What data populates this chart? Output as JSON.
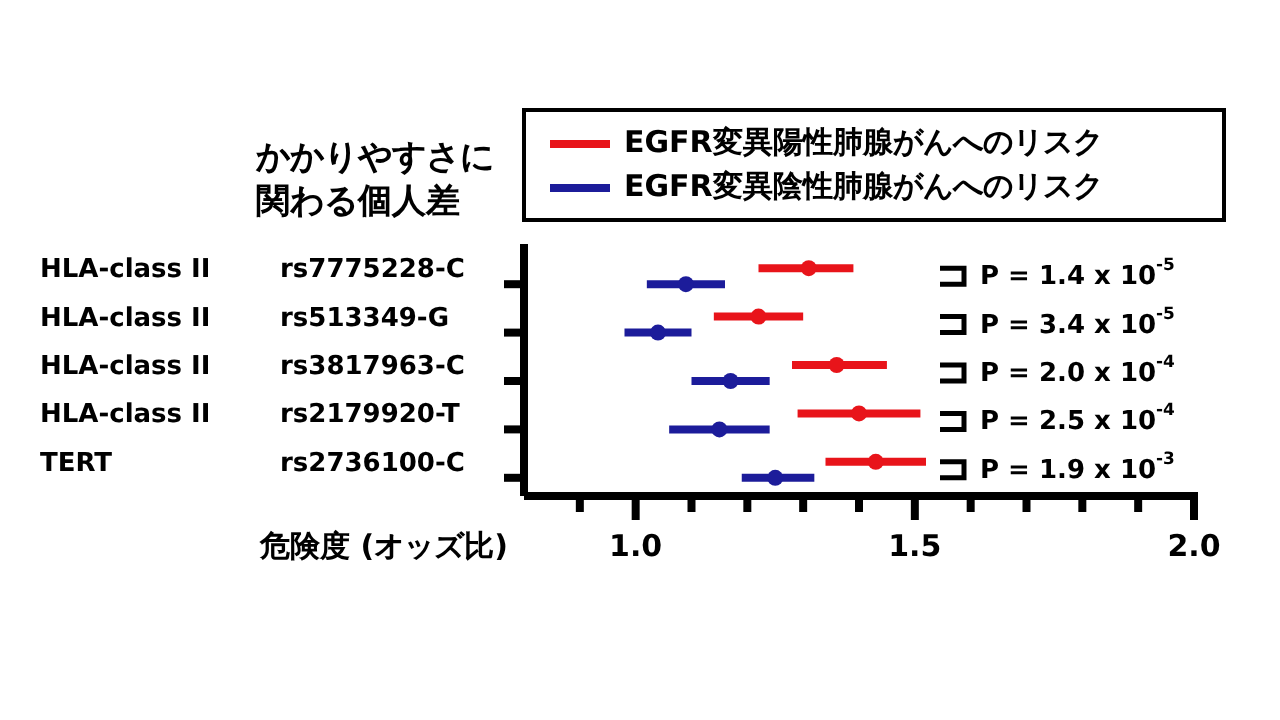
{
  "chart_data": {
    "type": "scatter",
    "orientation": "horizontal",
    "ylabel": "かかりやすさに関わる個人差",
    "xlabel": "危険度 (オッズ比)",
    "categories": [
      "rs7775228-C",
      "rs513349-G",
      "rs3817963-C",
      "rs2179920-T",
      "rs2736100-C"
    ],
    "y2_categories": [
      "HLA-class II",
      "HLA-class II",
      "HLA-class II",
      "HLA-class II",
      "TERT"
    ],
    "series": [
      {
        "name": "EGFR変異陽性肺腺がんへのリスク",
        "color": "#e8141a",
        "values": [
          1.31,
          1.22,
          1.36,
          1.4,
          1.43
        ],
        "errors": [
          [
            1.22,
            1.39
          ],
          [
            1.14,
            1.3
          ],
          [
            1.28,
            1.45
          ],
          [
            1.29,
            1.51
          ],
          [
            1.34,
            1.52
          ]
        ]
      },
      {
        "name": "EGFR変異陰性肺腺がんへのリスク",
        "color": "#1c1c9a",
        "values": [
          1.09,
          1.04,
          1.17,
          1.15,
          1.25
        ],
        "errors": [
          [
            1.02,
            1.16
          ],
          [
            0.98,
            1.1
          ],
          [
            1.1,
            1.24
          ],
          [
            1.06,
            1.24
          ],
          [
            1.19,
            1.32
          ]
        ]
      }
    ],
    "annotations": [
      "P = 1.4 x 10$^{-5}$",
      "P = 3.4 x 10$^{-5}$",
      "P = 2.0 x 10$^{-4}$",
      "P = 2.5 x 10$^{-4}$",
      "P = 1.9 x 10$^{-3}$"
    ],
    "xlim": [
      0.8,
      2.0
    ],
    "xticks": [
      {
        "value": 0.9,
        "label": null
      },
      {
        "value": 1,
        "label": "1.0"
      },
      {
        "value": 1.1,
        "label": null
      },
      {
        "value": 1.2,
        "label": null
      },
      {
        "value": 1.3,
        "label": null
      },
      {
        "value": 1.4,
        "label": null
      },
      1.5,
      {
        "value": 1.6,
        "label": null
      },
      {
        "value": 1.7,
        "label": null
      },
      {
        "value": 1.8,
        "label": null
      },
      {
        "value": 1.9,
        "label": null
      },
      {
        "value": 2,
        "label": "2.0"
      }
    ],
    "marker": "circle",
    "legend": "top"
  }
}
